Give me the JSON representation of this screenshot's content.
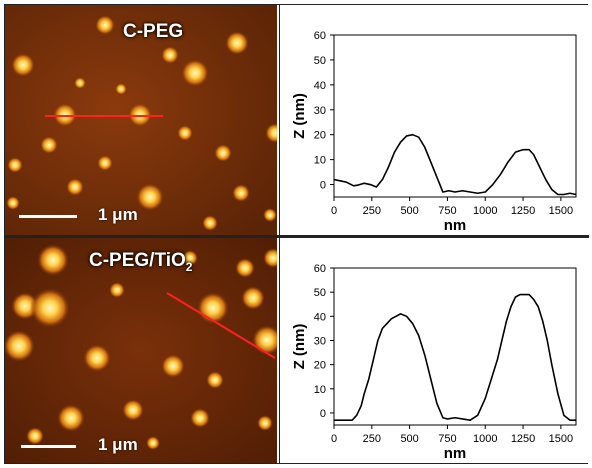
{
  "panels": [
    {
      "image_label_main": "C-PEG",
      "image_label_sub": "",
      "scale_bar_label": "1 μm",
      "line_color": "#ff2020"
    },
    {
      "image_label_main": "C-PEG/TiO",
      "image_label_sub": "2",
      "scale_bar_label": "1 μm",
      "line_color": "#ff2020"
    }
  ],
  "chart_data": [
    {
      "type": "line",
      "xlabel": "nm",
      "ylabel": "Z (nm)",
      "xlim": [
        0,
        1600
      ],
      "ylim": [
        0,
        60
      ],
      "xticks": [
        0,
        250,
        500,
        750,
        1000,
        1250,
        1500
      ],
      "yticks": [
        0,
        10,
        20,
        30,
        40,
        50,
        60
      ],
      "grid": false,
      "series": [
        {
          "x": [
            0,
            80,
            130,
            160,
            200,
            240,
            280,
            320,
            360,
            400,
            440,
            480,
            520,
            560,
            600,
            640,
            680,
            720,
            760,
            800,
            850,
            900,
            950,
            1000,
            1050,
            1100,
            1150,
            1200,
            1250,
            1290,
            1320,
            1360,
            1400,
            1440,
            1480,
            1520,
            1560,
            1600
          ],
          "y": [
            2,
            1,
            -0.5,
            -0.2,
            0.5,
            0,
            -1,
            2,
            7,
            13,
            17,
            19.5,
            20,
            19,
            15,
            9,
            3,
            -3,
            -2.5,
            -3,
            -2.5,
            -3,
            -3.5,
            -3,
            0,
            4,
            9,
            13,
            14,
            14,
            12,
            7,
            2,
            -2,
            -4,
            -4,
            -3.5,
            -4
          ]
        }
      ]
    },
    {
      "type": "line",
      "xlabel": "nm",
      "ylabel": "Z (nm)",
      "xlim": [
        0,
        1600
      ],
      "ylim": [
        0,
        60
      ],
      "xticks": [
        0,
        250,
        500,
        750,
        1000,
        1250,
        1500
      ],
      "yticks": [
        0,
        10,
        20,
        30,
        40,
        50,
        60
      ],
      "grid": false,
      "series": [
        {
          "x": [
            0,
            60,
            120,
            150,
            180,
            200,
            230,
            260,
            290,
            320,
            350,
            380,
            410,
            440,
            480,
            520,
            560,
            600,
            640,
            680,
            720,
            750,
            800,
            850,
            900,
            950,
            1000,
            1040,
            1080,
            1110,
            1140,
            1170,
            1200,
            1230,
            1260,
            1290,
            1320,
            1350,
            1380,
            1410,
            1440,
            1480,
            1520,
            1560,
            1600
          ],
          "y": [
            -3,
            -3,
            -3,
            -1,
            3,
            8,
            14,
            22,
            30,
            35,
            37,
            39,
            40,
            41,
            40,
            37,
            32,
            24,
            14,
            4,
            -2,
            -2.5,
            -2,
            -2.5,
            -3,
            -1,
            6,
            14,
            22,
            30,
            38,
            44,
            48,
            49,
            49,
            49,
            47,
            44,
            38,
            30,
            20,
            8,
            -1,
            -3,
            -3
          ]
        }
      ]
    }
  ]
}
